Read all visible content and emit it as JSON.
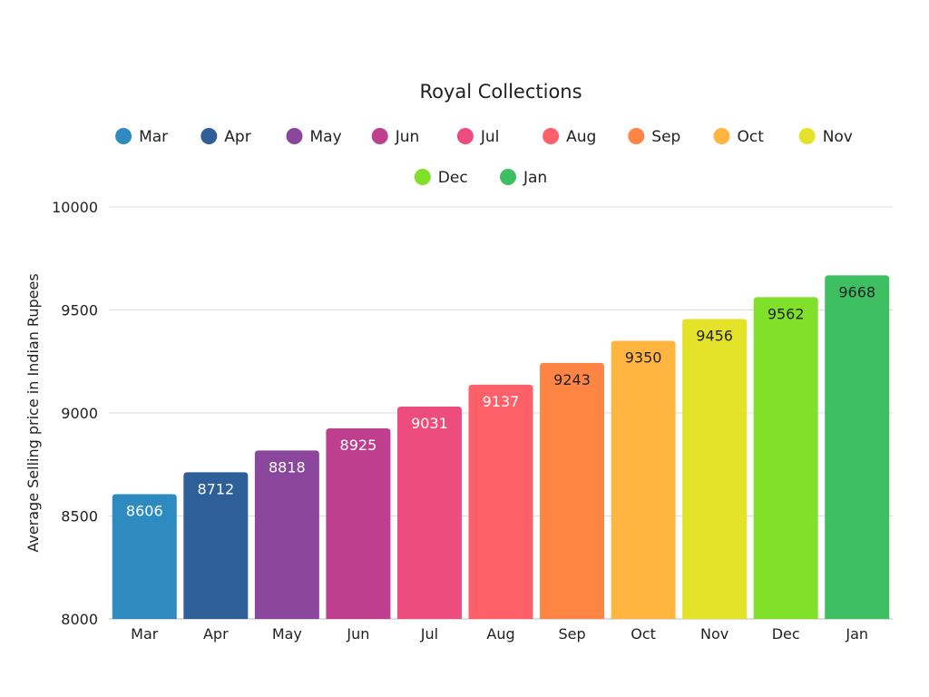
{
  "chart_data": {
    "type": "bar",
    "title": "Royal Collections",
    "xlabel": "",
    "ylabel": "Average Selling price in Indian Rupees",
    "ylim": [
      8000,
      10000
    ],
    "yticks": [
      8000,
      8500,
      9000,
      9500,
      10000
    ],
    "grid": true,
    "legend_position": "top",
    "categories": [
      "Mar",
      "Apr",
      "May",
      "Jun",
      "Jul",
      "Aug",
      "Sep",
      "Oct",
      "Nov",
      "Dec",
      "Jan"
    ],
    "values": [
      8606,
      8712,
      8818,
      8925,
      9031,
      9137,
      9243,
      9350,
      9456,
      9562,
      9668
    ],
    "colors": [
      "#2e8bc0",
      "#2e5f99",
      "#8a479c",
      "#bd3f8d",
      "#ec4c7e",
      "#fe6069",
      "#ff8544",
      "#ffb53f",
      "#e4e32a",
      "#80e02a",
      "#3dbf62"
    ],
    "label_colors": [
      "#ffffff",
      "#ffffff",
      "#ffffff",
      "#ffffff",
      "#ffffff",
      "#ffffff",
      "#222222",
      "#222222",
      "#222222",
      "#222222",
      "#222222"
    ]
  }
}
